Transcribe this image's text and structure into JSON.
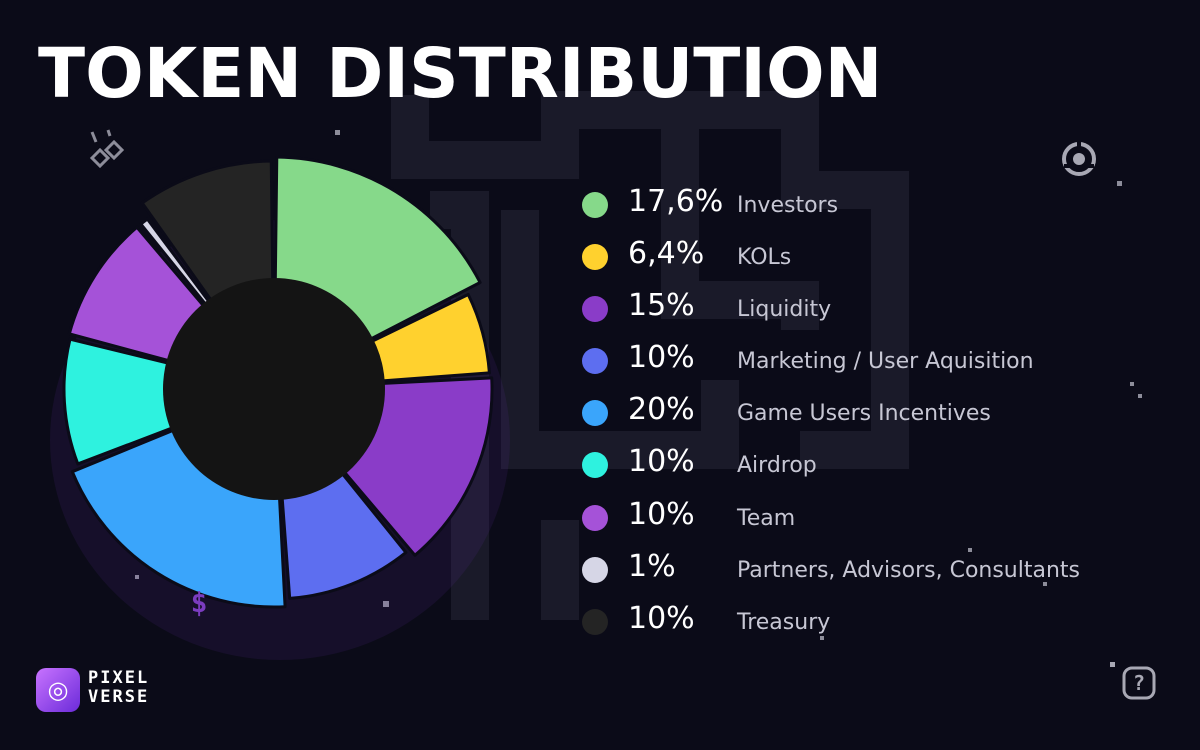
{
  "title": "TOKEN DISTRIBUTION",
  "logo": {
    "line1": "PIXEL",
    "line2": "VERSE"
  },
  "icons": {
    "glasses": "pixel-glasses-icon",
    "dollar": "pixel-dollar-icon",
    "ring": "pixel-ring-icon",
    "help": "pixel-question-icon",
    "logo": "swirl-logo-icon"
  },
  "colors": {
    "background": "#0b0b18",
    "title": "#ffffff",
    "donut_hole": "#141414"
  },
  "chart_data": {
    "type": "pie",
    "donut": true,
    "categories": [
      "Investors",
      "KOLs",
      "Liquidity",
      "Marketing / User Aquisition",
      "Game Users Incentives",
      "Airdrop",
      "Team",
      "Partners, Advisors, Consultants",
      "Treasury"
    ],
    "values": [
      17.6,
      6.4,
      15,
      10,
      20,
      10,
      10,
      1,
      10
    ],
    "value_labels": [
      "17,6%",
      "6,4%",
      "15%",
      "10%",
      "20%",
      "10%",
      "10%",
      "1%",
      "10%"
    ],
    "colors": [
      "#86d98a",
      "#ffd12e",
      "#8a3cc8",
      "#5d6ef0",
      "#3aa5fb",
      "#2ef2df",
      "#a552d8",
      "#d6d6e6",
      "#242424"
    ],
    "legend_position": "right",
    "title": "TOKEN DISTRIBUTION"
  }
}
